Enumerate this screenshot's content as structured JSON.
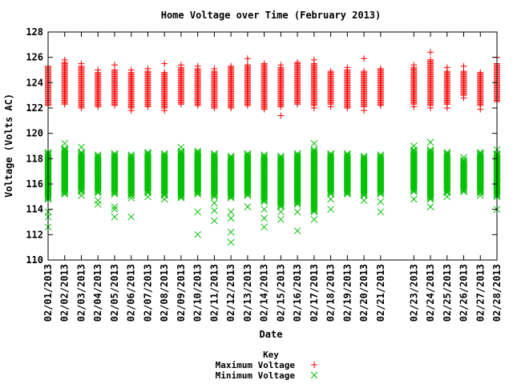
{
  "chart_data": {
    "type": "scatter",
    "title": "Home Voltage over Time (February 2013)",
    "xlabel": "Date",
    "ylabel": "Voltage (Volts AC)",
    "ylim": [
      110,
      128
    ],
    "yticks": [
      110,
      112,
      114,
      116,
      118,
      120,
      122,
      124,
      126,
      128
    ],
    "xlim": [
      1,
      28
    ],
    "x_ticks": [
      {
        "day": 1,
        "label": "02/01/2013"
      },
      {
        "day": 2,
        "label": "02/02/2013"
      },
      {
        "day": 3,
        "label": "02/03/2013"
      },
      {
        "day": 4,
        "label": "02/04/2013"
      },
      {
        "day": 5,
        "label": "02/05/2013"
      },
      {
        "day": 6,
        "label": "02/06/2013"
      },
      {
        "day": 7,
        "label": "02/07/2013"
      },
      {
        "day": 8,
        "label": "02/08/2013"
      },
      {
        "day": 9,
        "label": "02/09/2013"
      },
      {
        "day": 10,
        "label": "02/10/2013"
      },
      {
        "day": 11,
        "label": "02/11/2013"
      },
      {
        "day": 12,
        "label": "02/12/2013"
      },
      {
        "day": 13,
        "label": "02/13/2013"
      },
      {
        "day": 14,
        "label": "02/14/2013"
      },
      {
        "day": 15,
        "label": "02/15/2013"
      },
      {
        "day": 16,
        "label": "02/16/2013"
      },
      {
        "day": 17,
        "label": "02/17/2013"
      },
      {
        "day": 18,
        "label": "02/18/2013"
      },
      {
        "day": 19,
        "label": "02/19/2013"
      },
      {
        "day": 20,
        "label": "02/20/2013"
      },
      {
        "day": 21,
        "label": "02/21/2013"
      },
      {
        "day": 23,
        "label": "02/23/2013"
      },
      {
        "day": 24,
        "label": "02/24/2013"
      },
      {
        "day": 25,
        "label": "02/25/2013"
      },
      {
        "day": 26,
        "label": "02/26/2013"
      },
      {
        "day": 27,
        "label": "02/27/2013"
      },
      {
        "day": 28,
        "label": "02/28/2013"
      }
    ],
    "legend_title": "Key",
    "legend_position": "bottom-center",
    "series": [
      {
        "name": "Maximum Voltage",
        "marker": "+",
        "color": "#ff0000",
        "days": [
          {
            "day": 1,
            "low": 122.2,
            "high": 125.2,
            "extra": [
              125.3
            ]
          },
          {
            "day": 2,
            "low": 122.3,
            "high": 125.6,
            "extra": [
              125.8
            ]
          },
          {
            "day": 3,
            "low": 122.0,
            "high": 125.3,
            "extra": [
              125.5
            ]
          },
          {
            "day": 4,
            "low": 122.1,
            "high": 124.8,
            "extra": [
              125.0
            ]
          },
          {
            "day": 5,
            "low": 122.2,
            "high": 125.0,
            "extra": [
              125.4
            ]
          },
          {
            "day": 6,
            "low": 122.0,
            "high": 124.8,
            "extra": [
              121.8,
              125.0
            ]
          },
          {
            "day": 7,
            "low": 122.1,
            "high": 124.9,
            "extra": [
              125.1
            ]
          },
          {
            "day": 8,
            "low": 122.0,
            "high": 124.8,
            "extra": [
              121.8,
              125.5
            ]
          },
          {
            "day": 9,
            "low": 122.3,
            "high": 125.2,
            "extra": [
              125.4
            ]
          },
          {
            "day": 10,
            "low": 122.2,
            "high": 125.1,
            "extra": [
              125.3
            ]
          },
          {
            "day": 11,
            "low": 122.0,
            "high": 124.9,
            "extra": [
              125.1
            ]
          },
          {
            "day": 12,
            "low": 122.1,
            "high": 125.3,
            "extra": [
              122.0
            ]
          },
          {
            "day": 13,
            "low": 122.2,
            "high": 125.4,
            "extra": [
              125.9
            ]
          },
          {
            "day": 14,
            "low": 122.0,
            "high": 125.5,
            "extra": [
              121.9
            ]
          },
          {
            "day": 15,
            "low": 122.1,
            "high": 125.2,
            "extra": [
              121.4,
              125.4
            ]
          },
          {
            "day": 16,
            "low": 122.3,
            "high": 125.6,
            "extra": []
          },
          {
            "day": 17,
            "low": 122.2,
            "high": 125.5,
            "extra": [
              122.0,
              125.8
            ]
          },
          {
            "day": 18,
            "low": 122.3,
            "high": 124.9,
            "extra": [
              122.1
            ]
          },
          {
            "day": 19,
            "low": 122.0,
            "high": 125.0,
            "extra": [
              125.2
            ]
          },
          {
            "day": 20,
            "low": 122.1,
            "high": 124.9,
            "extra": [
              121.8,
              125.9
            ]
          },
          {
            "day": 21,
            "low": 122.2,
            "high": 125.0,
            "extra": [
              125.1
            ]
          },
          {
            "day": 23,
            "low": 122.3,
            "high": 125.2,
            "extra": [
              122.1,
              125.4
            ]
          },
          {
            "day": 24,
            "low": 122.2,
            "high": 125.8,
            "extra": [
              126.4,
              122.0
            ]
          },
          {
            "day": 25,
            "low": 122.3,
            "high": 124.9,
            "extra": [
              125.2,
              122.0
            ]
          },
          {
            "day": 26,
            "low": 123.0,
            "high": 124.9,
            "extra": [
              125.3,
              122.8
            ]
          },
          {
            "day": 27,
            "low": 122.2,
            "high": 124.8,
            "extra": [
              121.9
            ]
          },
          {
            "day": 28,
            "low": 122.5,
            "high": 125.5,
            "extra": [
              126.0
            ]
          }
        ]
      },
      {
        "name": "Minimum Voltage",
        "marker": "x",
        "color": "#00c000",
        "days": [
          {
            "day": 1,
            "low": 114.8,
            "high": 118.5,
            "extra": [
              112.6,
              113.4,
              113.8
            ]
          },
          {
            "day": 2,
            "low": 115.2,
            "high": 118.8,
            "extra": [
              119.2
            ]
          },
          {
            "day": 3,
            "low": 115.4,
            "high": 118.5,
            "extra": [
              118.9,
              115.1
            ]
          },
          {
            "day": 4,
            "low": 115.3,
            "high": 118.3,
            "extra": [
              114.4,
              114.7
            ]
          },
          {
            "day": 5,
            "low": 115.2,
            "high": 118.4,
            "extra": [
              113.4,
              114.2,
              114.0
            ]
          },
          {
            "day": 6,
            "low": 115.1,
            "high": 118.3,
            "extra": [
              113.4,
              114.9
            ]
          },
          {
            "day": 7,
            "low": 115.3,
            "high": 118.5,
            "extra": [
              115.0
            ]
          },
          {
            "day": 8,
            "low": 115.1,
            "high": 118.4,
            "extra": [
              114.8
            ]
          },
          {
            "day": 9,
            "low": 115.0,
            "high": 118.6,
            "extra": [
              118.9,
              114.9
            ]
          },
          {
            "day": 10,
            "low": 115.2,
            "high": 118.6,
            "extra": [
              112.0,
              113.8
            ]
          },
          {
            "day": 11,
            "low": 115.0,
            "high": 118.4,
            "extra": [
              113.1,
              113.9,
              114.5
            ]
          },
          {
            "day": 12,
            "low": 114.9,
            "high": 118.2,
            "extra": [
              111.4,
              112.2,
              113.3,
              113.8
            ]
          },
          {
            "day": 13,
            "low": 115.1,
            "high": 118.4,
            "extra": [
              114.2
            ]
          },
          {
            "day": 14,
            "low": 114.6,
            "high": 118.3,
            "extra": [
              112.6,
              113.3,
              114.0
            ]
          },
          {
            "day": 15,
            "low": 114.2,
            "high": 118.2,
            "extra": [
              113.2,
              113.8
            ]
          },
          {
            "day": 16,
            "low": 114.4,
            "high": 118.4,
            "extra": [
              112.3,
              113.8
            ]
          },
          {
            "day": 17,
            "low": 113.8,
            "high": 118.7,
            "extra": [
              119.2,
              113.2
            ]
          },
          {
            "day": 18,
            "low": 115.2,
            "high": 118.4,
            "extra": [
              114.0,
              114.8
            ]
          },
          {
            "day": 19,
            "low": 115.2,
            "high": 118.4,
            "extra": []
          },
          {
            "day": 20,
            "low": 115.1,
            "high": 118.2,
            "extra": [
              114.7
            ]
          },
          {
            "day": 21,
            "low": 115.2,
            "high": 118.3,
            "extra": [
              113.8,
              114.6
            ]
          },
          {
            "day": 23,
            "low": 115.4,
            "high": 118.7,
            "extra": [
              119.0,
              114.8
            ]
          },
          {
            "day": 24,
            "low": 114.8,
            "high": 118.7,
            "extra": [
              119.3,
              114.2
            ]
          },
          {
            "day": 25,
            "low": 115.3,
            "high": 118.5,
            "extra": [
              115.0
            ]
          },
          {
            "day": 26,
            "low": 115.4,
            "high": 117.9,
            "extra": [
              117.5,
              118.1
            ]
          },
          {
            "day": 27,
            "low": 115.3,
            "high": 118.5,
            "extra": [
              115.1
            ]
          },
          {
            "day": 28,
            "low": 115.0,
            "high": 118.4,
            "extra": [
              118.7,
              114.0
            ]
          }
        ]
      }
    ]
  }
}
